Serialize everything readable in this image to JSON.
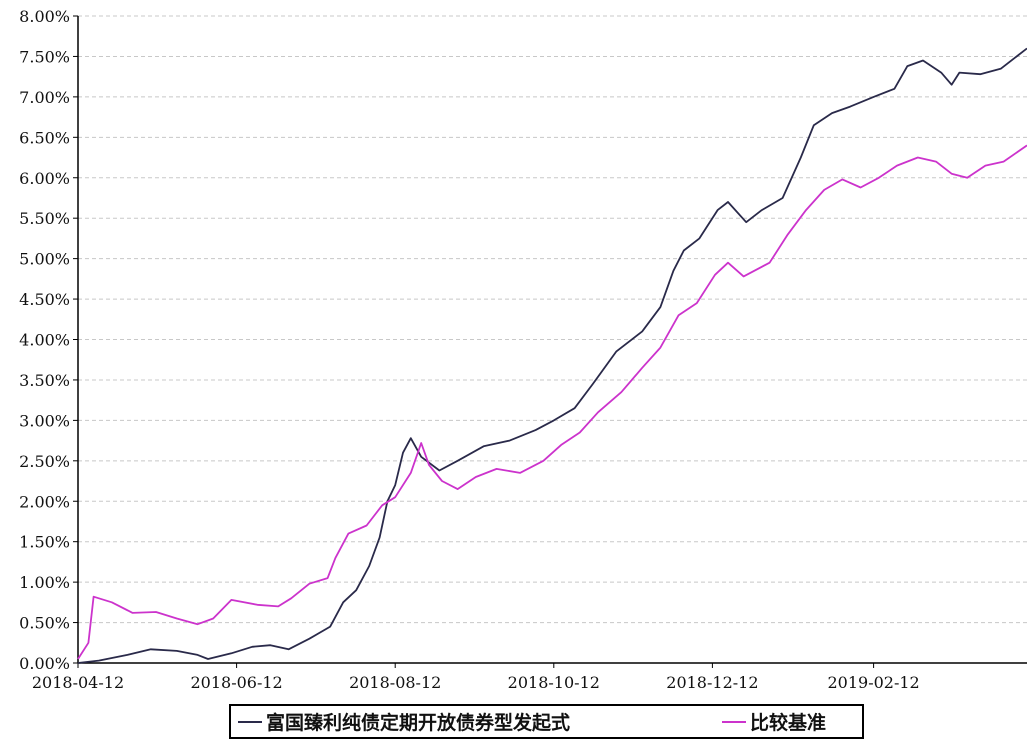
{
  "chart_data": {
    "type": "line",
    "title": "",
    "xlabel": "",
    "ylabel": "",
    "x_ticks": [
      "2018-04-12",
      "2018-06-12",
      "2018-08-12",
      "2018-10-12",
      "2018-12-12",
      "2019-02-12"
    ],
    "x_range": [
      "2018-04-12",
      "2019-04-12"
    ],
    "y_ticks": [
      "0.00%",
      "0.50%",
      "1.00%",
      "1.50%",
      "2.00%",
      "2.50%",
      "3.00%",
      "3.50%",
      "4.00%",
      "4.50%",
      "5.00%",
      "5.50%",
      "6.00%",
      "6.50%",
      "7.00%",
      "7.50%",
      "8.00%"
    ],
    "ylim": [
      0,
      8
    ],
    "grid": true,
    "legend_position": "bottom",
    "colors": {
      "fund": "#2a2a4a",
      "benchmark": "#cc33cc",
      "grid": "#c8c8c8",
      "axis": "#000000"
    },
    "series": [
      {
        "name": "富国臻利纯债定期开放债券型发起式",
        "color": "#2a2a4a",
        "points": [
          [
            "2018-04-12",
            0.0
          ],
          [
            "2018-04-20",
            0.03
          ],
          [
            "2018-05-01",
            0.1
          ],
          [
            "2018-05-10",
            0.17
          ],
          [
            "2018-05-20",
            0.15
          ],
          [
            "2018-05-28",
            0.1
          ],
          [
            "2018-06-01",
            0.05
          ],
          [
            "2018-06-10",
            0.12
          ],
          [
            "2018-06-18",
            0.2
          ],
          [
            "2018-06-25",
            0.22
          ],
          [
            "2018-07-02",
            0.17
          ],
          [
            "2018-07-10",
            0.3
          ],
          [
            "2018-07-18",
            0.45
          ],
          [
            "2018-07-23",
            0.75
          ],
          [
            "2018-07-28",
            0.9
          ],
          [
            "2018-08-02",
            1.2
          ],
          [
            "2018-08-06",
            1.55
          ],
          [
            "2018-08-09",
            2.0
          ],
          [
            "2018-08-12",
            2.2
          ],
          [
            "2018-08-15",
            2.6
          ],
          [
            "2018-08-18",
            2.78
          ],
          [
            "2018-08-22",
            2.55
          ],
          [
            "2018-08-29",
            2.38
          ],
          [
            "2018-09-05",
            2.5
          ],
          [
            "2018-09-15",
            2.68
          ],
          [
            "2018-09-25",
            2.75
          ],
          [
            "2018-10-05",
            2.88
          ],
          [
            "2018-10-12",
            3.0
          ],
          [
            "2018-10-20",
            3.15
          ],
          [
            "2018-10-27",
            3.45
          ],
          [
            "2018-11-05",
            3.85
          ],
          [
            "2018-11-15",
            4.1
          ],
          [
            "2018-11-22",
            4.4
          ],
          [
            "2018-11-27",
            4.85
          ],
          [
            "2018-12-01",
            5.1
          ],
          [
            "2018-12-07",
            5.25
          ],
          [
            "2018-12-14",
            5.6
          ],
          [
            "2018-12-18",
            5.7
          ],
          [
            "2018-12-25",
            5.45
          ],
          [
            "2018-12-31",
            5.6
          ],
          [
            "2019-01-08",
            5.75
          ],
          [
            "2019-01-15",
            6.25
          ],
          [
            "2019-01-20",
            6.65
          ],
          [
            "2019-01-27",
            6.8
          ],
          [
            "2019-02-03",
            6.88
          ],
          [
            "2019-02-12",
            7.0
          ],
          [
            "2019-02-20",
            7.1
          ],
          [
            "2019-02-25",
            7.38
          ],
          [
            "2019-03-03",
            7.45
          ],
          [
            "2019-03-10",
            7.3
          ],
          [
            "2019-03-14",
            7.15
          ],
          [
            "2019-03-17",
            7.3
          ],
          [
            "2019-03-25",
            7.28
          ],
          [
            "2019-04-02",
            7.35
          ],
          [
            "2019-04-12",
            7.6
          ]
        ]
      },
      {
        "name": "比较基准",
        "color": "#cc33cc",
        "points": [
          [
            "2018-04-12",
            0.05
          ],
          [
            "2018-04-16",
            0.25
          ],
          [
            "2018-04-18",
            0.82
          ],
          [
            "2018-04-25",
            0.75
          ],
          [
            "2018-05-03",
            0.62
          ],
          [
            "2018-05-12",
            0.63
          ],
          [
            "2018-05-20",
            0.55
          ],
          [
            "2018-05-28",
            0.48
          ],
          [
            "2018-06-03",
            0.55
          ],
          [
            "2018-06-10",
            0.78
          ],
          [
            "2018-06-20",
            0.72
          ],
          [
            "2018-06-28",
            0.7
          ],
          [
            "2018-07-03",
            0.8
          ],
          [
            "2018-07-10",
            0.98
          ],
          [
            "2018-07-17",
            1.05
          ],
          [
            "2018-07-20",
            1.3
          ],
          [
            "2018-07-25",
            1.6
          ],
          [
            "2018-08-01",
            1.7
          ],
          [
            "2018-08-07",
            1.95
          ],
          [
            "2018-08-12",
            2.05
          ],
          [
            "2018-08-18",
            2.35
          ],
          [
            "2018-08-22",
            2.72
          ],
          [
            "2018-08-25",
            2.45
          ],
          [
            "2018-08-30",
            2.25
          ],
          [
            "2018-09-05",
            2.15
          ],
          [
            "2018-09-12",
            2.3
          ],
          [
            "2018-09-20",
            2.4
          ],
          [
            "2018-09-29",
            2.35
          ],
          [
            "2018-10-08",
            2.5
          ],
          [
            "2018-10-15",
            2.7
          ],
          [
            "2018-10-22",
            2.85
          ],
          [
            "2018-10-29",
            3.1
          ],
          [
            "2018-11-07",
            3.35
          ],
          [
            "2018-11-15",
            3.65
          ],
          [
            "2018-11-22",
            3.9
          ],
          [
            "2018-11-29",
            4.3
          ],
          [
            "2018-12-06",
            4.45
          ],
          [
            "2018-12-13",
            4.8
          ],
          [
            "2018-12-18",
            4.95
          ],
          [
            "2018-12-24",
            4.78
          ],
          [
            "2019-01-03",
            4.95
          ],
          [
            "2019-01-10",
            5.3
          ],
          [
            "2019-01-17",
            5.6
          ],
          [
            "2019-01-24",
            5.85
          ],
          [
            "2019-01-31",
            5.98
          ],
          [
            "2019-02-07",
            5.88
          ],
          [
            "2019-02-14",
            6.0
          ],
          [
            "2019-02-21",
            6.15
          ],
          [
            "2019-03-01",
            6.25
          ],
          [
            "2019-03-08",
            6.2
          ],
          [
            "2019-03-14",
            6.05
          ],
          [
            "2019-03-20",
            6.0
          ],
          [
            "2019-03-27",
            6.15
          ],
          [
            "2019-04-03",
            6.2
          ],
          [
            "2019-04-12",
            6.4
          ]
        ]
      }
    ]
  }
}
